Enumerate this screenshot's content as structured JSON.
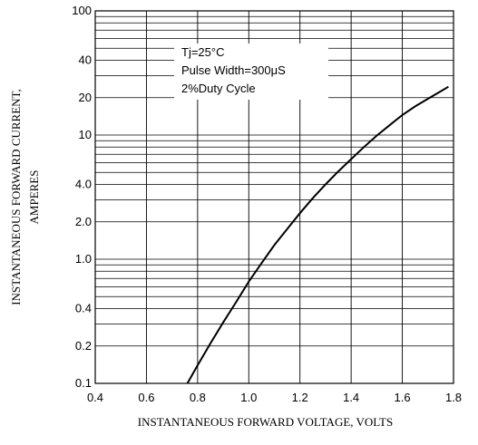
{
  "chart_data": {
    "type": "line",
    "title": "",
    "xlabel": "INSTANTANEOUS FORWARD VOLTAGE,  VOLTS",
    "ylabel_line1": "INSTANTANEOUS FORWARD CURRENT,",
    "ylabel_line2": "AMPERES",
    "xlim": [
      0.4,
      1.8
    ],
    "ylim": [
      0.1,
      100
    ],
    "yscale": "log",
    "grid": true,
    "x_ticks": [
      "0.4",
      "0.6",
      "0.8",
      "1.0",
      "1.2",
      "1.4",
      "1.6",
      "1.8"
    ],
    "y_ticks": [
      "0.1",
      "0.2",
      "0.4",
      "1.0",
      "2.0",
      "4.0",
      "10",
      "20",
      "40",
      "100"
    ],
    "annotations": [
      "Tj=25°C",
      "Pulse Width=300μS",
      "2%Duty Cycle"
    ],
    "series": [
      {
        "x": [
          0.76,
          0.8,
          0.85,
          0.9,
          0.95,
          1.0,
          1.05,
          1.1,
          1.15,
          1.2,
          1.25,
          1.3,
          1.35,
          1.4,
          1.45,
          1.5,
          1.55,
          1.6,
          1.65,
          1.7,
          1.75,
          1.78
        ],
        "y": [
          0.1,
          0.14,
          0.21,
          0.31,
          0.45,
          0.66,
          0.93,
          1.3,
          1.75,
          2.35,
          3.1,
          4.0,
          5.1,
          6.4,
          8.0,
          9.9,
          12.0,
          14.5,
          17.0,
          19.6,
          22.5,
          24.5
        ]
      }
    ]
  }
}
